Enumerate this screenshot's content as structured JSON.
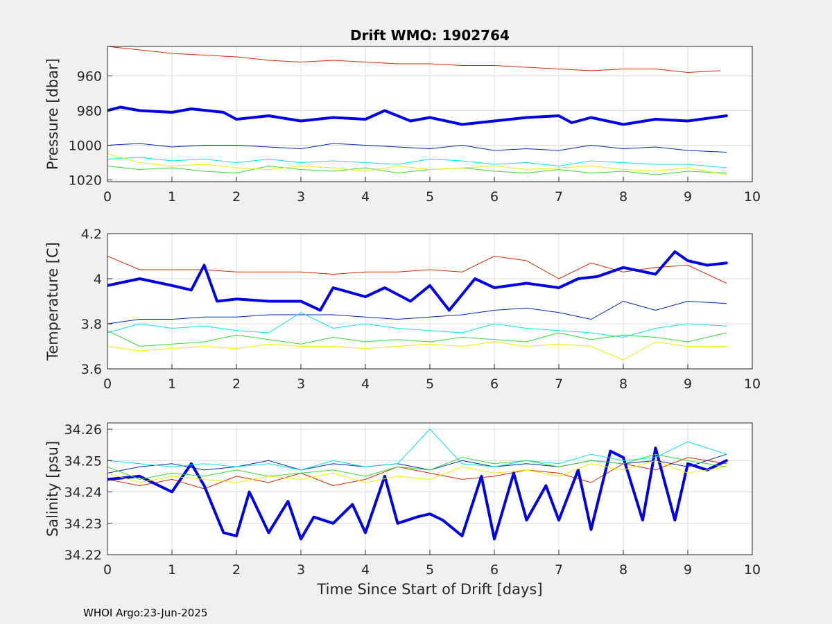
{
  "title": "Drift WMO: 1902764",
  "footer": "WHOI Argo:23-Jun-2025",
  "colors": {
    "figure_bg": "#f0f0f0",
    "axes_bg": "#ffffff",
    "grid": "#dcdcdc",
    "profile_1": "#d62800",
    "profile_2": "#0000e6",
    "profile_3": "#0026b8",
    "profile_4": "#00e6e6",
    "profile_5": "#33dd33",
    "profile_6": "#eeee00"
  },
  "chart_data": [
    {
      "type": "line",
      "title": "Drift WMO: 1902764",
      "xlabel": "",
      "ylabel": "Pressure [dbar]",
      "xlim": [
        0,
        10
      ],
      "ylim": [
        1021,
        943
      ],
      "y_reversed": true,
      "grid": true,
      "xticks": [
        "0",
        "1",
        "2",
        "3",
        "4",
        "5",
        "6",
        "7",
        "8",
        "9",
        "10"
      ],
      "yticks": [
        "960",
        "980",
        "1000",
        "1020"
      ],
      "series": [
        {
          "color": "#d62800",
          "width": 1,
          "x": [
            0,
            0.5,
            1,
            1.5,
            2,
            2.5,
            3,
            3.5,
            4,
            4.5,
            5,
            5.5,
            6,
            6.5,
            7,
            7.5,
            8,
            8.5,
            9,
            9.5
          ],
          "y": [
            943,
            945,
            947,
            948,
            949,
            951,
            952,
            951,
            952,
            953,
            953,
            954,
            954,
            955,
            956,
            957,
            956,
            956,
            958,
            957
          ]
        },
        {
          "color": "#0000e6",
          "width": 4,
          "x": [
            0,
            0.2,
            0.5,
            1,
            1.3,
            1.8,
            2,
            2.5,
            3,
            3.5,
            4,
            4.3,
            4.7,
            5,
            5.5,
            6,
            6.5,
            7,
            7.2,
            7.5,
            8,
            8.5,
            9,
            9.6
          ],
          "y": [
            980,
            978,
            980,
            981,
            979,
            981,
            985,
            983,
            986,
            984,
            985,
            980,
            986,
            984,
            988,
            986,
            984,
            983,
            987,
            984,
            988,
            985,
            986,
            983
          ]
        },
        {
          "color": "#0026b8",
          "width": 1,
          "x": [
            0,
            0.5,
            1,
            1.5,
            2,
            2.5,
            3,
            3.5,
            4,
            4.5,
            5,
            5.5,
            6,
            6.5,
            7,
            7.5,
            8,
            8.5,
            9,
            9.6
          ],
          "y": [
            1000,
            999,
            1001,
            1000,
            1000,
            1001,
            1002,
            999,
            1000,
            1001,
            1002,
            1000,
            1003,
            1002,
            1003,
            1000,
            1002,
            1001,
            1003,
            1004
          ]
        },
        {
          "color": "#00e6e6",
          "width": 1,
          "x": [
            0,
            0.5,
            1,
            1.5,
            2,
            2.5,
            3,
            3.5,
            4,
            4.5,
            5,
            5.5,
            6,
            6.5,
            7,
            7.5,
            8,
            8.5,
            9,
            9.6
          ],
          "y": [
            1008,
            1007,
            1009,
            1008,
            1010,
            1008,
            1010,
            1009,
            1010,
            1011,
            1008,
            1009,
            1011,
            1010,
            1012,
            1009,
            1010,
            1011,
            1011,
            1013
          ]
        },
        {
          "color": "#33dd33",
          "width": 1,
          "x": [
            0,
            0.5,
            1,
            1.5,
            2,
            2.5,
            3,
            3.5,
            4,
            4.5,
            5,
            5.5,
            6,
            6.5,
            7,
            7.5,
            8,
            8.5,
            9,
            9.6
          ],
          "y": [
            1012,
            1014,
            1013,
            1015,
            1016,
            1012,
            1014,
            1015,
            1013,
            1016,
            1014,
            1013,
            1015,
            1016,
            1014,
            1016,
            1015,
            1017,
            1015,
            1016
          ]
        },
        {
          "color": "#eeee00",
          "width": 1,
          "x": [
            0,
            0.5,
            1,
            1.5,
            2,
            2.5,
            3,
            3.5,
            4,
            4.5,
            5,
            5.5,
            6,
            6.5,
            7,
            7.5,
            8,
            8.5,
            9,
            9.6
          ],
          "y": [
            1005,
            1010,
            1012,
            1011,
            1013,
            1014,
            1012,
            1013,
            1015,
            1012,
            1014,
            1013,
            1012,
            1014,
            1013,
            1012,
            1014,
            1015,
            1013,
            1017
          ]
        }
      ]
    },
    {
      "type": "line",
      "xlabel": "",
      "ylabel": "Temperature [C]",
      "xlim": [
        0,
        10
      ],
      "ylim": [
        3.6,
        4.2
      ],
      "grid": true,
      "xticks": [
        "0",
        "1",
        "2",
        "3",
        "4",
        "5",
        "6",
        "7",
        "8",
        "9",
        "10"
      ],
      "yticks": [
        "3.6",
        "3.8",
        "4",
        "4.2"
      ],
      "series": [
        {
          "color": "#d62800",
          "width": 1,
          "x": [
            0,
            0.5,
            1,
            1.5,
            2,
            2.5,
            3,
            3.5,
            4,
            4.5,
            5,
            5.5,
            6,
            6.5,
            7,
            7.5,
            8,
            8.5,
            9,
            9.6
          ],
          "y": [
            4.1,
            4.04,
            4.04,
            4.04,
            4.03,
            4.03,
            4.03,
            4.02,
            4.03,
            4.03,
            4.04,
            4.03,
            4.1,
            4.08,
            4.0,
            4.07,
            4.03,
            4.05,
            4.06,
            3.98
          ]
        },
        {
          "color": "#0000e6",
          "width": 4,
          "x": [
            0,
            0.5,
            1,
            1.3,
            1.5,
            1.7,
            2,
            2.5,
            3,
            3.3,
            3.5,
            4,
            4.3,
            4.7,
            5,
            5.3,
            5.7,
            6,
            6.5,
            7,
            7.3,
            7.6,
            8,
            8.5,
            8.8,
            9,
            9.3,
            9.6
          ],
          "y": [
            3.97,
            4.0,
            3.97,
            3.95,
            4.06,
            3.9,
            3.91,
            3.9,
            3.9,
            3.86,
            3.96,
            3.92,
            3.96,
            3.9,
            3.97,
            3.86,
            4.0,
            3.96,
            3.98,
            3.96,
            4.0,
            4.01,
            4.05,
            4.02,
            4.12,
            4.08,
            4.06,
            4.07
          ]
        },
        {
          "color": "#0026b8",
          "width": 1,
          "x": [
            0,
            0.5,
            1,
            1.5,
            2,
            2.5,
            3,
            3.5,
            4,
            4.5,
            5,
            5.5,
            6,
            6.5,
            7,
            7.5,
            8,
            8.5,
            9,
            9.6
          ],
          "y": [
            3.8,
            3.82,
            3.82,
            3.83,
            3.83,
            3.84,
            3.84,
            3.84,
            3.83,
            3.82,
            3.83,
            3.84,
            3.86,
            3.87,
            3.85,
            3.82,
            3.9,
            3.86,
            3.9,
            3.89
          ]
        },
        {
          "color": "#00e6e6",
          "width": 1,
          "x": [
            0,
            0.5,
            1,
            1.5,
            2,
            2.5,
            3,
            3.5,
            4,
            4.5,
            5,
            5.5,
            6,
            6.5,
            7,
            7.5,
            8,
            8.5,
            9,
            9.6
          ],
          "y": [
            3.76,
            3.8,
            3.78,
            3.79,
            3.77,
            3.76,
            3.85,
            3.78,
            3.8,
            3.78,
            3.77,
            3.76,
            3.8,
            3.78,
            3.77,
            3.76,
            3.74,
            3.78,
            3.8,
            3.79
          ]
        },
        {
          "color": "#33dd33",
          "width": 1,
          "x": [
            0,
            0.5,
            1,
            1.5,
            2,
            2.5,
            3,
            3.5,
            4,
            4.5,
            5,
            5.5,
            6,
            6.5,
            7,
            7.5,
            8,
            8.5,
            9,
            9.6
          ],
          "y": [
            3.77,
            3.7,
            3.71,
            3.72,
            3.75,
            3.73,
            3.71,
            3.74,
            3.72,
            3.73,
            3.72,
            3.74,
            3.73,
            3.72,
            3.76,
            3.73,
            3.75,
            3.74,
            3.72,
            3.76
          ]
        },
        {
          "color": "#eeee00",
          "width": 1,
          "x": [
            0,
            0.5,
            1,
            1.5,
            2,
            2.5,
            3,
            3.5,
            4,
            4.5,
            5,
            5.5,
            6,
            6.5,
            7,
            7.5,
            8,
            8.5,
            9,
            9.6
          ],
          "y": [
            3.7,
            3.68,
            3.69,
            3.7,
            3.69,
            3.71,
            3.7,
            3.7,
            3.69,
            3.7,
            3.71,
            3.7,
            3.72,
            3.7,
            3.71,
            3.7,
            3.64,
            3.72,
            3.7,
            3.7
          ]
        }
      ]
    },
    {
      "type": "line",
      "xlabel": "Time Since Start of Drift [days]",
      "ylabel": "Salinity [psu]",
      "xlim": [
        0,
        10
      ],
      "ylim": [
        34.22,
        34.262
      ],
      "grid": true,
      "xticks": [
        "0",
        "1",
        "2",
        "3",
        "4",
        "5",
        "6",
        "7",
        "8",
        "9",
        "10"
      ],
      "yticks": [
        "34.22",
        "34.23",
        "34.24",
        "34.25",
        "34.26"
      ],
      "series": [
        {
          "color": "#d62800",
          "width": 1,
          "x": [
            0,
            0.5,
            1,
            1.5,
            2,
            2.5,
            3,
            3.5,
            4,
            4.5,
            5,
            5.5,
            6,
            6.5,
            7,
            7.5,
            8,
            8.5,
            9,
            9.6
          ],
          "y": [
            34.244,
            34.242,
            34.244,
            34.241,
            34.245,
            34.243,
            34.246,
            34.242,
            34.244,
            34.248,
            34.246,
            34.244,
            34.245,
            34.247,
            34.246,
            34.243,
            34.249,
            34.247,
            34.251,
            34.249
          ]
        },
        {
          "color": "#0000e6",
          "width": 4,
          "x": [
            0,
            0.5,
            1,
            1.3,
            1.5,
            1.8,
            2,
            2.2,
            2.5,
            2.8,
            3,
            3.2,
            3.5,
            3.8,
            4,
            4.3,
            4.5,
            4.8,
            5,
            5.2,
            5.5,
            5.8,
            6,
            6.3,
            6.5,
            6.8,
            7,
            7.3,
            7.5,
            7.8,
            8,
            8.3,
            8.5,
            8.8,
            9,
            9.3,
            9.6
          ],
          "y": [
            34.244,
            34.245,
            34.24,
            34.249,
            34.242,
            34.227,
            34.226,
            34.24,
            34.227,
            34.237,
            34.225,
            34.232,
            34.23,
            34.236,
            34.227,
            34.245,
            34.23,
            34.232,
            34.233,
            34.231,
            34.226,
            34.245,
            34.225,
            34.246,
            34.231,
            34.242,
            34.231,
            34.247,
            34.228,
            34.253,
            34.251,
            34.231,
            34.254,
            34.231,
            34.249,
            34.247,
            34.25
          ]
        },
        {
          "color": "#0026b8",
          "width": 1,
          "x": [
            0,
            0.5,
            1,
            1.5,
            2,
            2.5,
            3,
            3.5,
            4,
            4.5,
            5,
            5.5,
            6,
            6.5,
            7,
            7.5,
            8,
            8.5,
            9,
            9.6
          ],
          "y": [
            34.246,
            34.248,
            34.249,
            34.247,
            34.248,
            34.25,
            34.247,
            34.249,
            34.248,
            34.249,
            34.247,
            34.25,
            34.248,
            34.249,
            34.248,
            34.25,
            34.249,
            34.25,
            34.248,
            34.252
          ]
        },
        {
          "color": "#00e6e6",
          "width": 1,
          "x": [
            0,
            0.5,
            1,
            1.5,
            2,
            2.5,
            3,
            3.5,
            4,
            4.5,
            5,
            5.5,
            6,
            6.5,
            7,
            7.5,
            8,
            8.5,
            9,
            9.6
          ],
          "y": [
            34.25,
            34.249,
            34.248,
            34.249,
            34.248,
            34.249,
            34.247,
            34.25,
            34.248,
            34.249,
            34.26,
            34.249,
            34.248,
            34.25,
            34.249,
            34.252,
            34.25,
            34.251,
            34.256,
            34.252
          ]
        },
        {
          "color": "#33dd33",
          "width": 1,
          "x": [
            0,
            0.5,
            1,
            1.5,
            2,
            2.5,
            3,
            3.5,
            4,
            4.5,
            5,
            5.5,
            6,
            6.5,
            7,
            7.5,
            8,
            8.5,
            9,
            9.6
          ],
          "y": [
            34.248,
            34.244,
            34.246,
            34.245,
            34.247,
            34.245,
            34.246,
            34.247,
            34.245,
            34.248,
            34.247,
            34.251,
            34.249,
            34.25,
            34.248,
            34.25,
            34.249,
            34.252,
            34.25,
            34.248
          ]
        },
        {
          "color": "#eeee00",
          "width": 1,
          "x": [
            0,
            0.5,
            1,
            1.5,
            2,
            2.5,
            3,
            3.5,
            4,
            4.5,
            5,
            5.5,
            6,
            6.5,
            7,
            7.5,
            8,
            8.5,
            9,
            9.6
          ],
          "y": [
            34.246,
            34.243,
            34.245,
            34.244,
            34.243,
            34.245,
            34.244,
            34.246,
            34.243,
            34.245,
            34.244,
            34.248,
            34.246,
            34.247,
            34.245,
            34.249,
            34.247,
            34.25,
            34.246,
            34.248
          ]
        }
      ]
    }
  ]
}
